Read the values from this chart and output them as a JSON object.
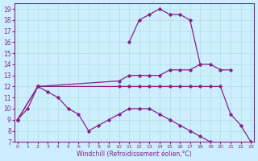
{
  "bg_color": "#cceeff",
  "line_color": "#882288",
  "xlabel": "Windchill (Refroidissement éolien,°C)",
  "ylim": [
    7,
    19.5
  ],
  "xlim": [
    -0.3,
    23.3
  ],
  "ytick_vals": [
    7,
    8,
    9,
    10,
    11,
    12,
    13,
    14,
    15,
    16,
    17,
    18,
    19
  ],
  "xtick_vals": [
    0,
    1,
    2,
    3,
    4,
    5,
    6,
    7,
    8,
    9,
    10,
    11,
    12,
    13,
    14,
    15,
    16,
    17,
    18,
    19,
    20,
    21,
    22,
    23
  ],
  "series": [
    {
      "x": [
        0,
        1,
        2,
        3,
        4,
        5,
        6,
        7,
        8,
        9,
        10,
        11,
        12,
        13,
        14,
        15,
        16,
        17,
        18,
        19,
        20,
        21,
        22,
        23
      ],
      "y": [
        9,
        10,
        12,
        11.5,
        11,
        10,
        9.5,
        8,
        8.5,
        9,
        9.5,
        10,
        10,
        10,
        9.5,
        9,
        8.5,
        8,
        7.5,
        7,
        null,
        null,
        null,
        null
      ]
    },
    {
      "x": [
        11,
        12,
        13,
        14,
        15,
        16,
        17,
        18
      ],
      "y": [
        16,
        18,
        18.5,
        19,
        18.5,
        18.5,
        18,
        14
      ]
    },
    {
      "x": [
        0,
        2,
        10,
        11,
        12,
        13,
        14,
        15,
        16,
        17,
        18,
        19,
        20,
        21
      ],
      "y": [
        9,
        12,
        12.5,
        13,
        13,
        13,
        13,
        13.5,
        13.5,
        13.5,
        14,
        14,
        13.5,
        13.5
      ]
    },
    {
      "x": [
        0,
        2,
        10,
        11,
        12,
        13,
        14,
        15,
        16,
        17,
        18,
        19,
        20,
        21,
        22,
        23
      ],
      "y": [
        9,
        12,
        12,
        12,
        12,
        12,
        12,
        12,
        12,
        12,
        12,
        12,
        12,
        9.5,
        8.5,
        7
      ]
    }
  ]
}
